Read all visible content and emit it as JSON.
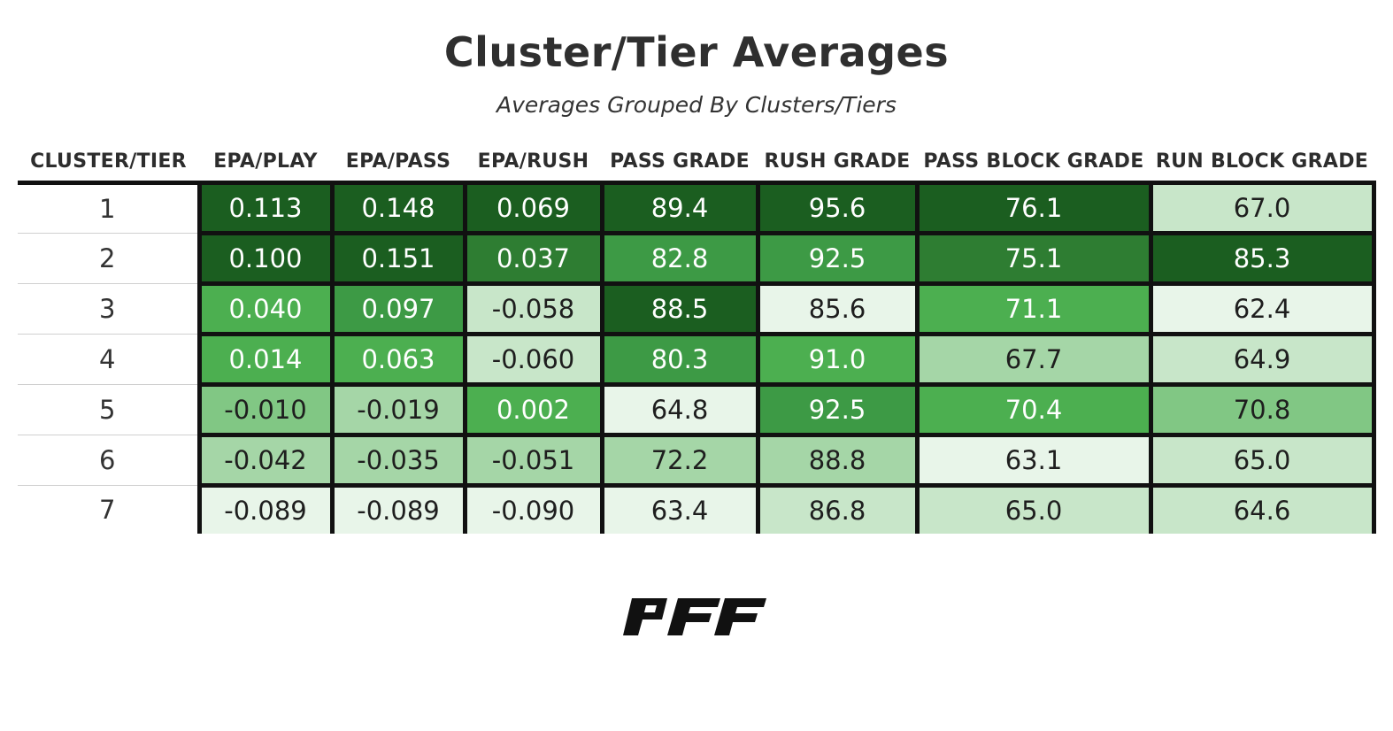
{
  "title": "Cluster/Tier Averages",
  "subtitle": "Averages Grouped By Clusters/Tiers",
  "logo_text": "PFF",
  "colors": {
    "scale": [
      "#e8f5e9",
      "#c8e6c9",
      "#a5d6a7",
      "#81c784",
      "#4caf50",
      "#3d9a45",
      "#2e7d32",
      "#1b5e20"
    ],
    "border": "#111111"
  },
  "chart_data": {
    "type": "table",
    "columns": [
      "CLUSTER/TIER",
      "EPA/PLAY",
      "EPA/PASS",
      "EPA/RUSH",
      "PASS GRADE",
      "RUSH GRADE",
      "PASS BLOCK GRADE",
      "RUN BLOCK GRADE"
    ],
    "rows": [
      [
        "1",
        "0.113",
        "0.148",
        "0.069",
        "89.4",
        "95.6",
        "76.1",
        "67.0"
      ],
      [
        "2",
        "0.100",
        "0.151",
        "0.037",
        "82.8",
        "92.5",
        "75.1",
        "85.3"
      ],
      [
        "3",
        "0.040",
        "0.097",
        "-0.058",
        "88.5",
        "85.6",
        "71.1",
        "62.4"
      ],
      [
        "4",
        "0.014",
        "0.063",
        "-0.060",
        "80.3",
        "91.0",
        "67.7",
        "64.9"
      ],
      [
        "5",
        "-0.010",
        "-0.019",
        "0.002",
        "64.8",
        "92.5",
        "70.4",
        "70.8"
      ],
      [
        "6",
        "-0.042",
        "-0.035",
        "-0.051",
        "72.2",
        "88.8",
        "63.1",
        "65.0"
      ],
      [
        "7",
        "-0.089",
        "-0.089",
        "-0.090",
        "63.4",
        "86.8",
        "65.0",
        "64.6"
      ]
    ]
  }
}
